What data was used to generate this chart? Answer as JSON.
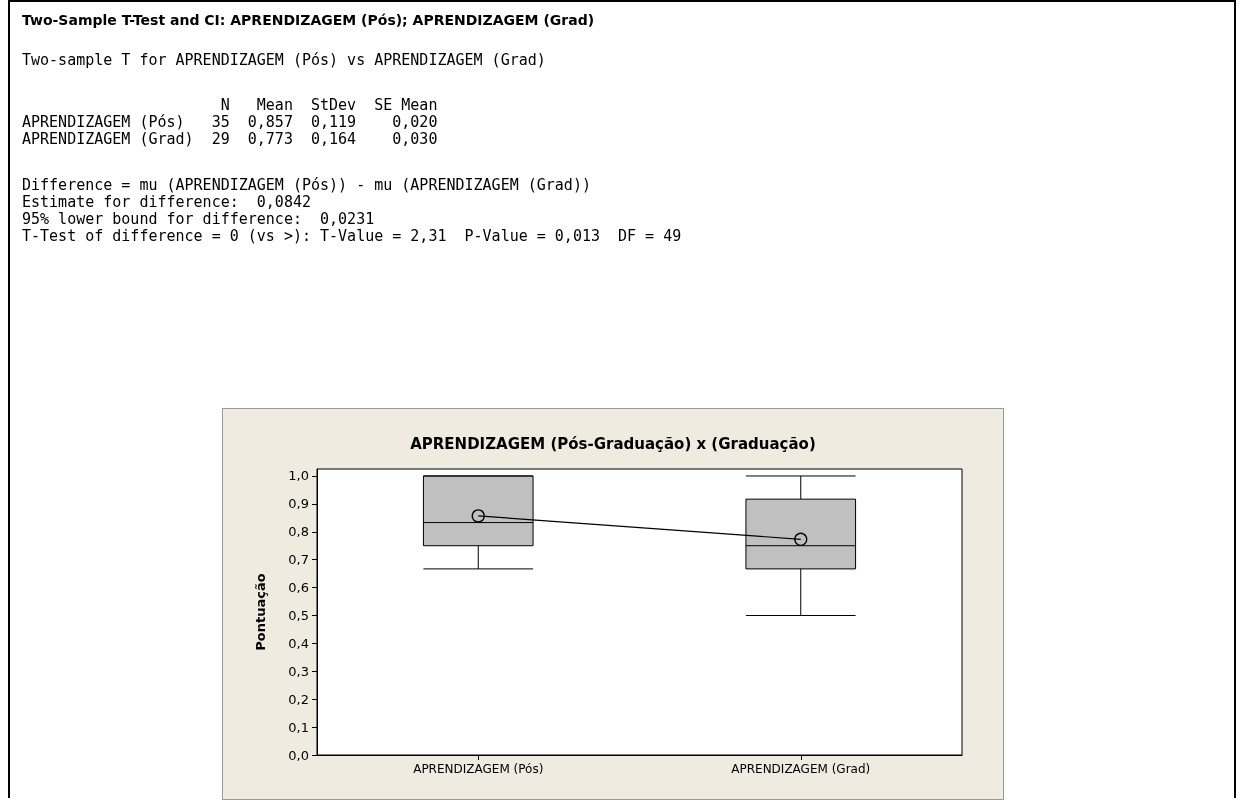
{
  "chart_data": {
    "type": "box",
    "title": "APRENDIZAGEM (Pós-Graduação) x (Graduação)",
    "ylabel": "Pontuação",
    "categories": [
      "APRENDIZAGEM (Pós)",
      "APRENDIZAGEM (Grad)"
    ],
    "series": [
      {
        "color": "#c0c0c0",
        "boxes": [
          {
            "low": 0.667,
            "q1": 0.75,
            "median": 0.833,
            "q3": 1.0,
            "high": 1.0
          },
          {
            "low": 0.5,
            "q1": 0.667,
            "median": 0.75,
            "q3": 0.917,
            "high": 1.0
          }
        ]
      },
      {
        "type": "line",
        "color": "#000000",
        "values": [
          0.857,
          0.773
        ]
      }
    ],
    "marker": "circle",
    "ylim": [
      0,
      1.025
    ],
    "yticks": [
      {
        "value": 0,
        "label": "0,0"
      },
      {
        "value": 0.1,
        "label": "0,1"
      },
      {
        "value": 0.2,
        "label": "0,2"
      },
      {
        "value": 0.3,
        "label": "0,3"
      },
      {
        "value": 0.4,
        "label": "0,4"
      },
      {
        "value": 0.5,
        "label": "0,5"
      },
      {
        "value": 0.6,
        "label": "0,6"
      },
      {
        "value": 0.7,
        "label": "0,7"
      },
      {
        "value": 0.8,
        "label": "0,8"
      },
      {
        "value": 0.9,
        "label": "0,9"
      },
      {
        "value": 1.0,
        "label": "1,0"
      }
    ],
    "annotations": [
      "Two-Sample T-Test and CI: APRENDIZAGEM (Pós); APRENDIZAGEM (Grad)",
      "Two-sample T for APRENDIZAGEM (Pós) vs APRENDIZAGEM (Grad)",
      "                      N   Mean  StDev  SE Mean",
      "APRENDIZAGEM (Pós)   35  0,857  0,119    0,020",
      "APRENDIZAGEM (Grad)  29  0,773  0,164    0,030",
      "Difference = mu (APRENDIZAGEM (Pós)) - mu (APRENDIZAGEM (Grad))",
      "Estimate for difference:  0,0842",
      "95% lower bound for difference:  0,0231",
      "T-Test of difference = 0 (vs >): T-Value = 2,31  P-Value = 0,013  DF = 49"
    ]
  }
}
